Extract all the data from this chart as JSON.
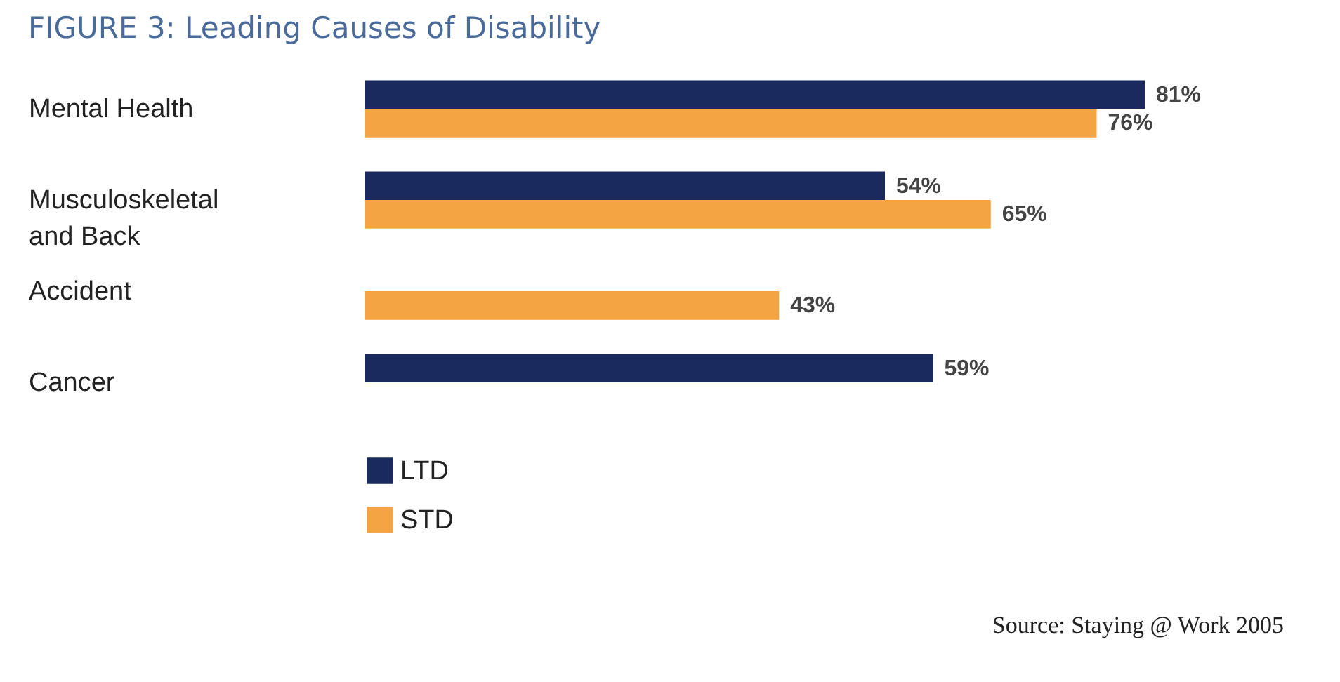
{
  "chart_data": {
    "type": "bar",
    "orientation": "horizontal",
    "title": "FIGURE 3: Leading Causes of Disability",
    "categories": [
      "Mental Health",
      "Musculoskeletal and Back",
      "Accident",
      "Cancer"
    ],
    "series": [
      {
        "name": "LTD",
        "color": "#1b2a5e",
        "values": [
          81,
          54,
          null,
          59
        ],
        "value_labels": [
          "81%",
          "54%",
          null,
          "59%"
        ]
      },
      {
        "name": "STD",
        "color": "#f5a444",
        "values": [
          76,
          65,
          43,
          null
        ],
        "value_labels": [
          "76%",
          "65%",
          "43%",
          null
        ]
      }
    ],
    "legend": "bottom left",
    "annotations": [
      "Source: Staying @ Work 2005"
    ]
  }
}
